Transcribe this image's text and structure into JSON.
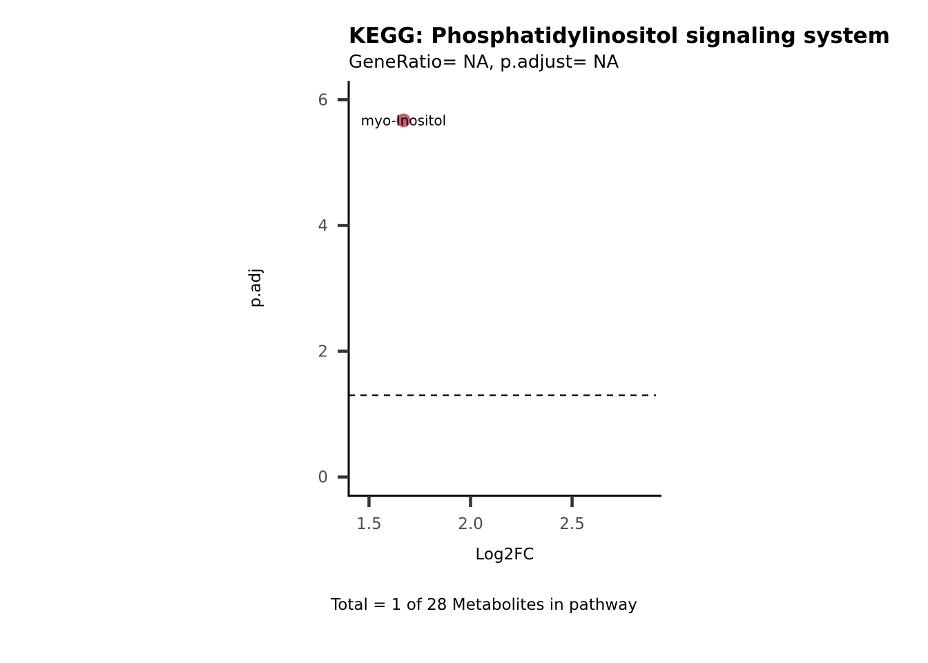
{
  "chart_data": {
    "type": "scatter",
    "title": "KEGG: Phosphatidylinositol signaling system",
    "subtitle": "GeneRatio= NA, p.adjust= NA",
    "xlabel": "Log2FC",
    "ylabel": "p.adj",
    "caption": "Total = 1 of 28 Metabolites in pathway",
    "xlim": [
      1.4,
      2.94
    ],
    "ylim": [
      -0.3,
      6.3
    ],
    "x_ticks": [
      1.5,
      2.0,
      2.5
    ],
    "x_tick_labels": [
      "1.5",
      "2.0",
      "2.5"
    ],
    "y_ticks": [
      0,
      2,
      4,
      6
    ],
    "y_tick_labels": [
      "0",
      "2",
      "4",
      "6"
    ],
    "threshold_line": {
      "y": 1.3,
      "style": "dashed"
    },
    "grid": false,
    "points": [
      {
        "label": "myo-Inositol",
        "x": 1.67,
        "y": 5.67,
        "color": "#c8606e"
      }
    ]
  }
}
